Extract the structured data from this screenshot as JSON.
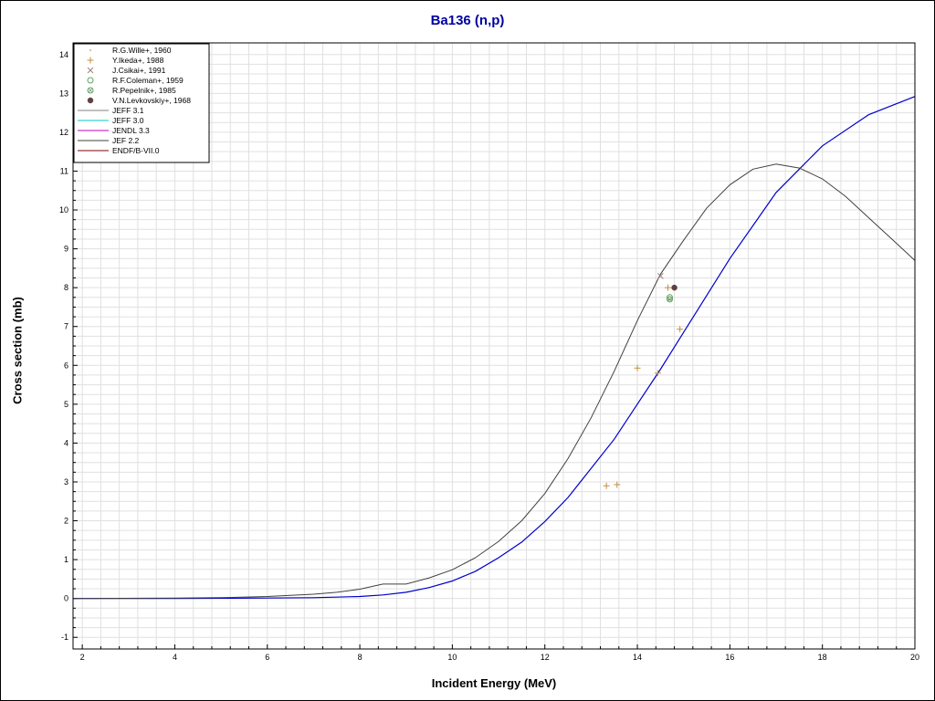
{
  "chart_data": {
    "type": "scatter",
    "title": "Ba136 (n,p)",
    "xlabel": "Incident Energy (MeV)",
    "ylabel": "Cross section (mb)",
    "xlim": [
      1.8,
      20
    ],
    "ylim": [
      -1.3,
      14.3
    ],
    "x_ticks": [
      "2",
      "4",
      "6",
      "8",
      "10",
      "12",
      "14",
      "16",
      "18",
      "20"
    ],
    "y_ticks": [
      "-1",
      "0",
      "1",
      "2",
      "3",
      "4",
      "5",
      "6",
      "7",
      "8",
      "9",
      "10",
      "11",
      "12",
      "13",
      "14"
    ],
    "grid": true,
    "legend_position": "top-left",
    "experimental": [
      {
        "name": "R.G.Wille+, 1960",
        "marker": "dot",
        "color": "#c8b070",
        "points": []
      },
      {
        "name": "Y.Ikeda+, 1988",
        "marker": "plus",
        "color": "#c09040",
        "points": [
          [
            13.33,
            2.9
          ],
          [
            13.56,
            2.93
          ],
          [
            14.0,
            5.93
          ],
          [
            14.44,
            5.8
          ],
          [
            14.66,
            8.0
          ],
          [
            14.92,
            6.93
          ]
        ]
      },
      {
        "name": "J.Csikai+, 1991",
        "marker": "cross",
        "color": "#a08080",
        "points": [
          [
            14.5,
            8.3
          ]
        ]
      },
      {
        "name": "R.F.Coleman+, 1959",
        "marker": "circle",
        "color": "#60a060",
        "points": [
          [
            14.7,
            7.75
          ]
        ]
      },
      {
        "name": "R.Pepelnik+, 1985",
        "marker": "circle-cross",
        "color": "#60a060",
        "points": [
          [
            14.7,
            7.7
          ]
        ]
      },
      {
        "name": "V.N.Levkovskiy+, 1968",
        "marker": "filled-circle",
        "color": "#604040",
        "points": [
          [
            14.8,
            8.0
          ]
        ]
      }
    ],
    "evaluated": [
      {
        "name": "JEFF 3.1",
        "color": "#808080",
        "draw": false,
        "points": []
      },
      {
        "name": "JEFF 3.0",
        "color": "#00c8c8",
        "draw": false,
        "points": []
      },
      {
        "name": "JENDL 3.3",
        "color": "#c000c0",
        "draw": false,
        "points": []
      },
      {
        "name": "JEF 2.2",
        "color": "#404040",
        "draw": true,
        "points": [
          [
            1.8,
            0.0
          ],
          [
            4.0,
            0.01
          ],
          [
            5.0,
            0.02
          ],
          [
            6.0,
            0.05
          ],
          [
            7.0,
            0.11
          ],
          [
            7.5,
            0.16
          ],
          [
            8.0,
            0.24
          ],
          [
            8.5,
            0.37
          ],
          [
            9.0,
            0.37
          ],
          [
            9.5,
            0.53
          ],
          [
            10.0,
            0.74
          ],
          [
            10.5,
            1.05
          ],
          [
            11.0,
            1.47
          ],
          [
            11.5,
            2.0
          ],
          [
            12.0,
            2.7
          ],
          [
            12.5,
            3.6
          ],
          [
            13.0,
            4.65
          ],
          [
            13.5,
            5.85
          ],
          [
            14.0,
            7.15
          ],
          [
            14.5,
            8.35
          ],
          [
            15.0,
            9.22
          ],
          [
            15.5,
            10.05
          ],
          [
            16.0,
            10.65
          ],
          [
            16.5,
            11.05
          ],
          [
            17.0,
            11.18
          ],
          [
            17.5,
            11.08
          ],
          [
            18.0,
            10.8
          ],
          [
            18.5,
            10.35
          ],
          [
            19.0,
            9.8
          ],
          [
            19.5,
            9.25
          ],
          [
            20.0,
            8.7
          ]
        ]
      },
      {
        "name": "ENDF/B-VII.0",
        "color": "#800000",
        "draw": false,
        "points": []
      }
    ],
    "extra_lines": [
      {
        "color": "#0000cc",
        "points": [
          [
            1.8,
            0.0
          ],
          [
            4.0,
            0.0
          ],
          [
            6.0,
            0.01
          ],
          [
            7.0,
            0.02
          ],
          [
            8.0,
            0.05
          ],
          [
            8.5,
            0.09
          ],
          [
            9.0,
            0.16
          ],
          [
            9.5,
            0.28
          ],
          [
            10.0,
            0.45
          ],
          [
            10.5,
            0.7
          ],
          [
            11.0,
            1.05
          ],
          [
            11.5,
            1.45
          ],
          [
            12.0,
            1.98
          ],
          [
            12.5,
            2.6
          ],
          [
            13.0,
            3.35
          ],
          [
            13.5,
            4.1
          ],
          [
            14.0,
            5.0
          ],
          [
            14.5,
            5.9
          ],
          [
            15.0,
            6.85
          ],
          [
            15.5,
            7.8
          ],
          [
            16.0,
            8.75
          ],
          [
            16.5,
            9.6
          ],
          [
            17.0,
            10.45
          ],
          [
            17.5,
            11.05
          ],
          [
            18.0,
            11.65
          ],
          [
            19.0,
            12.45
          ],
          [
            20.0,
            12.92
          ]
        ]
      }
    ]
  }
}
